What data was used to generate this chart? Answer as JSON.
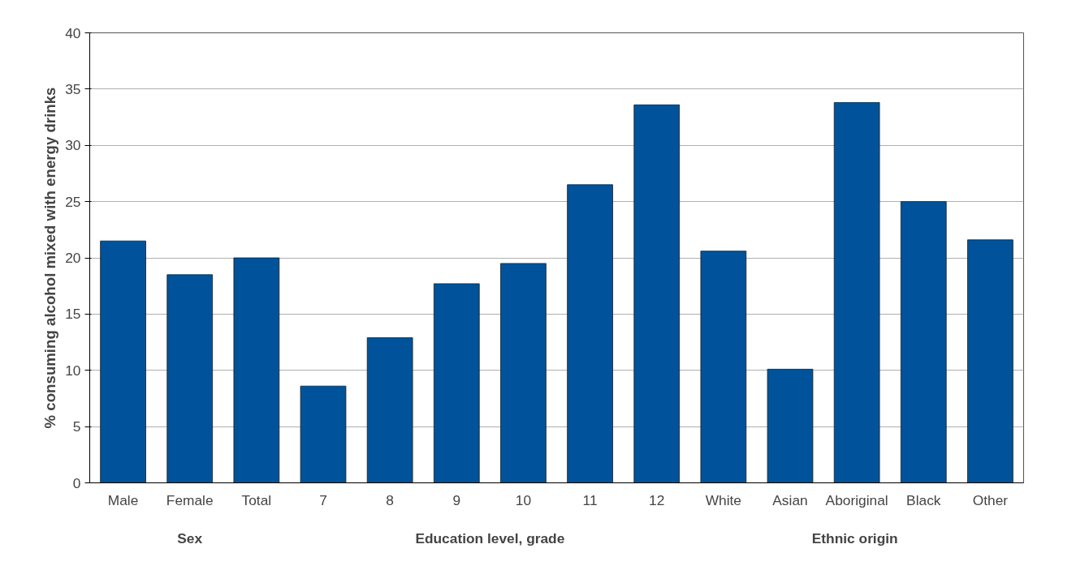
{
  "chart_data": {
    "type": "bar",
    "ylabel": "% consuming alcohol mixed with energy drinks",
    "categories": [
      "Male",
      "Female",
      "Total",
      "7",
      "8",
      "9",
      "10",
      "11",
      "12",
      "White",
      "Asian",
      "Aboriginal",
      "Black",
      "Other"
    ],
    "values": [
      21.5,
      18.5,
      20.0,
      8.6,
      12.9,
      17.7,
      19.5,
      26.5,
      33.6,
      20.6,
      10.1,
      33.8,
      25.0,
      21.6
    ],
    "color": "#00539a",
    "ylim": [
      0,
      40
    ],
    "yticks": [
      0,
      5,
      10,
      15,
      20,
      25,
      30,
      35,
      40
    ],
    "grid": "y",
    "annotations": [
      "Sex",
      "Education level, grade",
      "Ethnic  origin"
    ]
  }
}
